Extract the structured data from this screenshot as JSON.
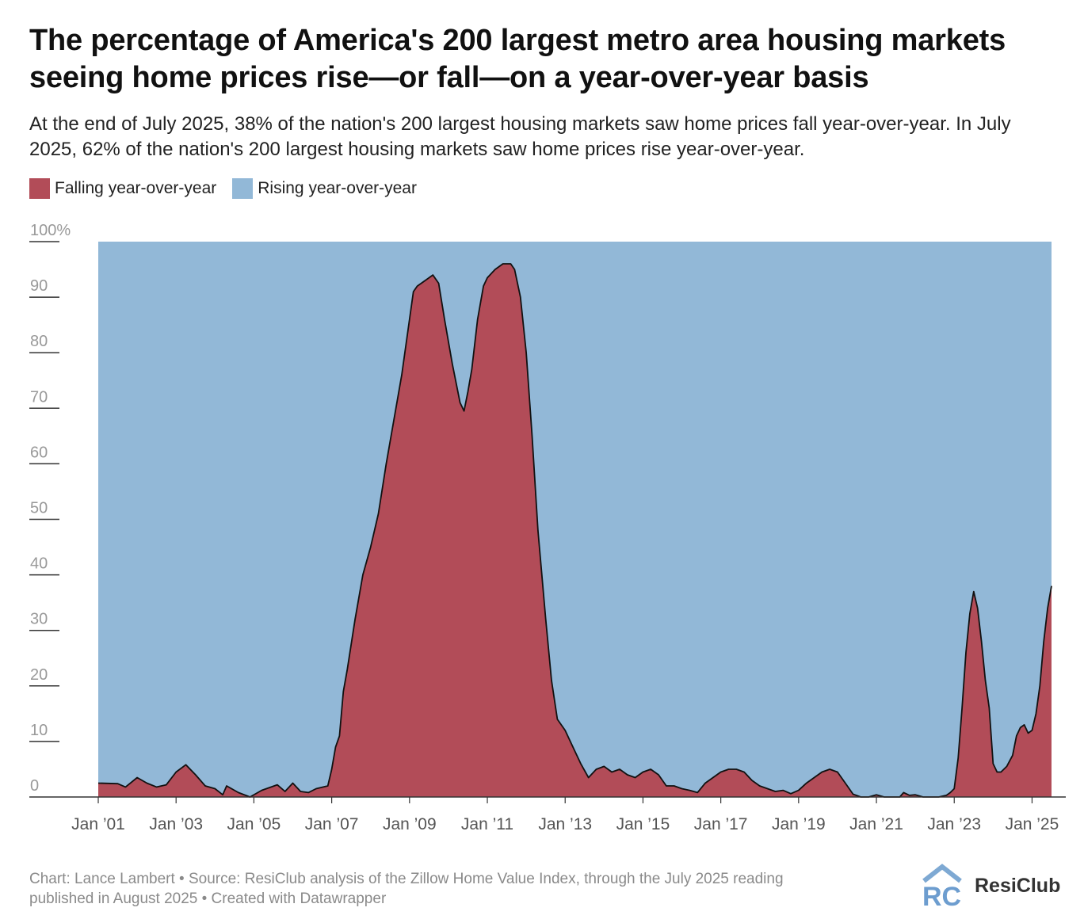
{
  "title": "The percentage of America's 200 largest metro area housing markets seeing home prices rise—or fall—on a year-over-year basis",
  "subtitle": "At the end of July 2025, 38% of the nation's 200 largest housing markets saw home prices fall year-over-year. In July 2025, 62% of the nation's 200 largest housing markets saw home prices rise year-over-year.",
  "legend": {
    "falling": {
      "label": "Falling year-over-year",
      "color": "#b24c58"
    },
    "rising": {
      "label": "Rising year-over-year",
      "color": "#92b8d7"
    }
  },
  "footer": {
    "line1": "Chart: Lance Lambert • Source: ResiClub analysis of the Zillow Home Value Index, through the July 2025 reading",
    "line2": "published in August 2025 • Created with Datawrapper"
  },
  "logo": {
    "mark": "RC",
    "text": "ResiClub"
  },
  "chart_data": {
    "type": "area",
    "stacked": true,
    "ylim": [
      0,
      100
    ],
    "xlim": [
      2001.0,
      2025.5
    ],
    "y_ticks": [
      {
        "value": 100,
        "label": "100%"
      },
      {
        "value": 90,
        "label": "90"
      },
      {
        "value": 80,
        "label": "80"
      },
      {
        "value": 70,
        "label": "70"
      },
      {
        "value": 60,
        "label": "60"
      },
      {
        "value": 50,
        "label": "50"
      },
      {
        "value": 40,
        "label": "40"
      },
      {
        "value": 30,
        "label": "30"
      },
      {
        "value": 20,
        "label": "20"
      },
      {
        "value": 10,
        "label": "10"
      },
      {
        "value": 0,
        "label": "0"
      }
    ],
    "x_ticks": [
      {
        "value": 2001,
        "label": "Jan ’01"
      },
      {
        "value": 2003,
        "label": "Jan ’03"
      },
      {
        "value": 2005,
        "label": "Jan ’05"
      },
      {
        "value": 2007,
        "label": "Jan ’07"
      },
      {
        "value": 2009,
        "label": "Jan ’09"
      },
      {
        "value": 2011,
        "label": "Jan ’11"
      },
      {
        "value": 2013,
        "label": "Jan ’13"
      },
      {
        "value": 2015,
        "label": "Jan ’15"
      },
      {
        "value": 2017,
        "label": "Jan ’17"
      },
      {
        "value": 2019,
        "label": "Jan ’19"
      },
      {
        "value": 2021,
        "label": "Jan ’21"
      },
      {
        "value": 2023,
        "label": "Jan ’23"
      },
      {
        "value": 2025,
        "label": "Jan ’25"
      }
    ],
    "series": [
      {
        "name": "Falling year-over-year",
        "color": "#b24c58",
        "points": [
          [
            2001.0,
            2.5
          ],
          [
            2001.5,
            2.4
          ],
          [
            2001.7,
            1.8
          ],
          [
            2002.0,
            3.5
          ],
          [
            2002.25,
            2.5
          ],
          [
            2002.5,
            1.8
          ],
          [
            2002.75,
            2.2
          ],
          [
            2003.0,
            4.5
          ],
          [
            2003.25,
            5.8
          ],
          [
            2003.5,
            4.0
          ],
          [
            2003.75,
            2.0
          ],
          [
            2004.0,
            1.5
          ],
          [
            2004.2,
            0.4
          ],
          [
            2004.3,
            2.0
          ],
          [
            2004.6,
            0.8
          ],
          [
            2004.9,
            0.0
          ],
          [
            2005.2,
            1.2
          ],
          [
            2005.6,
            2.2
          ],
          [
            2005.8,
            1.0
          ],
          [
            2006.0,
            2.5
          ],
          [
            2006.2,
            1.0
          ],
          [
            2006.4,
            0.8
          ],
          [
            2006.6,
            1.5
          ],
          [
            2006.9,
            2.0
          ],
          [
            2007.0,
            5.0
          ],
          [
            2007.1,
            9.0
          ],
          [
            2007.2,
            11.0
          ],
          [
            2007.3,
            19.0
          ],
          [
            2007.4,
            23.0
          ],
          [
            2007.6,
            32.0
          ],
          [
            2007.8,
            40.0
          ],
          [
            2008.0,
            45.0
          ],
          [
            2008.2,
            51.0
          ],
          [
            2008.4,
            60.0
          ],
          [
            2008.6,
            68.0
          ],
          [
            2008.8,
            76.0
          ],
          [
            2009.0,
            86.0
          ],
          [
            2009.1,
            91.0
          ],
          [
            2009.2,
            92.0
          ],
          [
            2009.4,
            93.0
          ],
          [
            2009.6,
            94.0
          ],
          [
            2009.75,
            92.5
          ],
          [
            2009.9,
            86.0
          ],
          [
            2010.1,
            78.0
          ],
          [
            2010.3,
            71.0
          ],
          [
            2010.4,
            69.5
          ],
          [
            2010.5,
            73.0
          ],
          [
            2010.6,
            77.0
          ],
          [
            2010.75,
            86.0
          ],
          [
            2010.9,
            92.0
          ],
          [
            2011.0,
            93.5
          ],
          [
            2011.2,
            95.0
          ],
          [
            2011.4,
            96.0
          ],
          [
            2011.6,
            96.0
          ],
          [
            2011.7,
            95.0
          ],
          [
            2011.85,
            90.0
          ],
          [
            2012.0,
            80.0
          ],
          [
            2012.15,
            65.0
          ],
          [
            2012.3,
            48.0
          ],
          [
            2012.5,
            32.0
          ],
          [
            2012.65,
            21.0
          ],
          [
            2012.8,
            14.0
          ],
          [
            2013.0,
            12.0
          ],
          [
            2013.2,
            9.0
          ],
          [
            2013.4,
            6.0
          ],
          [
            2013.6,
            3.5
          ],
          [
            2013.8,
            5.0
          ],
          [
            2014.0,
            5.5
          ],
          [
            2014.2,
            4.5
          ],
          [
            2014.4,
            5.0
          ],
          [
            2014.6,
            4.0
          ],
          [
            2014.8,
            3.5
          ],
          [
            2015.0,
            4.5
          ],
          [
            2015.2,
            5.0
          ],
          [
            2015.4,
            4.0
          ],
          [
            2015.6,
            2.0
          ],
          [
            2015.8,
            2.0
          ],
          [
            2016.0,
            1.5
          ],
          [
            2016.2,
            1.2
          ],
          [
            2016.4,
            0.8
          ],
          [
            2016.6,
            2.5
          ],
          [
            2016.8,
            3.5
          ],
          [
            2017.0,
            4.5
          ],
          [
            2017.2,
            5.0
          ],
          [
            2017.4,
            5.0
          ],
          [
            2017.6,
            4.5
          ],
          [
            2017.8,
            3.0
          ],
          [
            2018.0,
            2.0
          ],
          [
            2018.2,
            1.5
          ],
          [
            2018.4,
            1.0
          ],
          [
            2018.6,
            1.2
          ],
          [
            2018.8,
            0.6
          ],
          [
            2019.0,
            1.2
          ],
          [
            2019.2,
            2.5
          ],
          [
            2019.4,
            3.5
          ],
          [
            2019.6,
            4.5
          ],
          [
            2019.8,
            5.0
          ],
          [
            2020.0,
            4.5
          ],
          [
            2020.2,
            2.5
          ],
          [
            2020.4,
            0.5
          ],
          [
            2020.6,
            0.0
          ],
          [
            2020.8,
            0.0
          ],
          [
            2021.0,
            0.4
          ],
          [
            2021.2,
            0.0
          ],
          [
            2021.6,
            0.0
          ],
          [
            2021.7,
            0.8
          ],
          [
            2021.85,
            0.3
          ],
          [
            2022.0,
            0.4
          ],
          [
            2022.2,
            0.0
          ],
          [
            2022.6,
            0.0
          ],
          [
            2022.8,
            0.3
          ],
          [
            2022.9,
            0.8
          ],
          [
            2023.0,
            1.5
          ],
          [
            2023.1,
            7.0
          ],
          [
            2023.2,
            16.0
          ],
          [
            2023.3,
            26.0
          ],
          [
            2023.4,
            33.0
          ],
          [
            2023.5,
            37.0
          ],
          [
            2023.6,
            34.0
          ],
          [
            2023.7,
            28.0
          ],
          [
            2023.8,
            21.0
          ],
          [
            2023.9,
            16.0
          ],
          [
            2024.0,
            6.0
          ],
          [
            2024.1,
            4.5
          ],
          [
            2024.2,
            4.5
          ],
          [
            2024.35,
            5.5
          ],
          [
            2024.5,
            7.5
          ],
          [
            2024.6,
            11.0
          ],
          [
            2024.7,
            12.5
          ],
          [
            2024.8,
            13.0
          ],
          [
            2024.9,
            11.5
          ],
          [
            2025.0,
            12.0
          ],
          [
            2025.1,
            15.0
          ],
          [
            2025.2,
            20.0
          ],
          [
            2025.3,
            28.0
          ],
          [
            2025.4,
            34.0
          ],
          [
            2025.5,
            38.0
          ]
        ]
      },
      {
        "name": "Rising year-over-year",
        "color": "#92b8d7",
        "note_complement": 100
      }
    ],
    "grid": false
  }
}
